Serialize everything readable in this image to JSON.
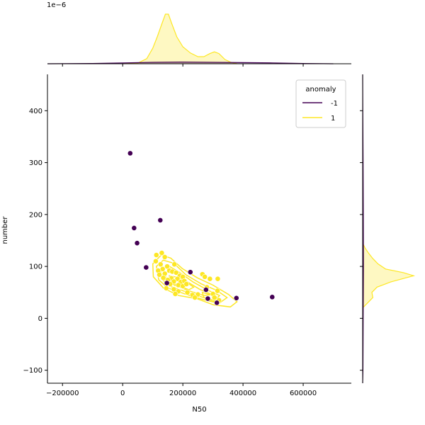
{
  "chart_data": {
    "type": "scatter",
    "title": "",
    "xlabel": "N50",
    "ylabel": "number",
    "xlim": [
      -250000,
      760000
    ],
    "ylim": [
      -125,
      470
    ],
    "x_ticks": [
      -200000,
      0,
      200000,
      400000,
      600000
    ],
    "x_tick_labels": [
      "−200000",
      "0",
      "200000",
      "400000",
      "600000"
    ],
    "y_ticks": [
      -100,
      0,
      100,
      200,
      300,
      400
    ],
    "y_tick_labels": [
      "−100",
      "0",
      "100",
      "200",
      "300",
      "400"
    ],
    "offset_text": "1e−6",
    "grid": false,
    "legend": {
      "title": "anomaly",
      "placement": "top-right"
    },
    "series": [
      {
        "name": "-1",
        "color": "#440154",
        "points": [
          {
            "x": 25000,
            "y": 318
          },
          {
            "x": 38000,
            "y": 174
          },
          {
            "x": 48000,
            "y": 145
          },
          {
            "x": 125000,
            "y": 189
          },
          {
            "x": 78000,
            "y": 98
          },
          {
            "x": 147000,
            "y": 68
          },
          {
            "x": 225000,
            "y": 89
          },
          {
            "x": 277000,
            "y": 55
          },
          {
            "x": 283000,
            "y": 38
          },
          {
            "x": 313000,
            "y": 30
          },
          {
            "x": 378000,
            "y": 39
          },
          {
            "x": 497000,
            "y": 41
          }
        ]
      },
      {
        "name": "1",
        "color": "#fde725",
        "points": [
          {
            "x": 112000,
            "y": 122
          },
          {
            "x": 130000,
            "y": 126
          },
          {
            "x": 140000,
            "y": 118
          },
          {
            "x": 148000,
            "y": 100
          },
          {
            "x": 172000,
            "y": 104
          },
          {
            "x": 110000,
            "y": 110
          },
          {
            "x": 126000,
            "y": 104
          },
          {
            "x": 133000,
            "y": 95
          },
          {
            "x": 118000,
            "y": 92
          },
          {
            "x": 155000,
            "y": 92
          },
          {
            "x": 165000,
            "y": 90
          },
          {
            "x": 178000,
            "y": 88
          },
          {
            "x": 140000,
            "y": 86
          },
          {
            "x": 122000,
            "y": 84
          },
          {
            "x": 190000,
            "y": 82
          },
          {
            "x": 200000,
            "y": 80
          },
          {
            "x": 135000,
            "y": 78
          },
          {
            "x": 162000,
            "y": 77
          },
          {
            "x": 182000,
            "y": 76
          },
          {
            "x": 150000,
            "y": 74
          },
          {
            "x": 170000,
            "y": 71
          },
          {
            "x": 193000,
            "y": 70
          },
          {
            "x": 205000,
            "y": 72
          },
          {
            "x": 158000,
            "y": 66
          },
          {
            "x": 185000,
            "y": 64
          },
          {
            "x": 200000,
            "y": 62
          },
          {
            "x": 212000,
            "y": 66
          },
          {
            "x": 145000,
            "y": 58
          },
          {
            "x": 170000,
            "y": 56
          },
          {
            "x": 185000,
            "y": 52
          },
          {
            "x": 215000,
            "y": 50
          },
          {
            "x": 232000,
            "y": 45
          },
          {
            "x": 175000,
            "y": 47
          },
          {
            "x": 265000,
            "y": 85
          },
          {
            "x": 273000,
            "y": 80
          },
          {
            "x": 290000,
            "y": 76
          },
          {
            "x": 316000,
            "y": 76
          },
          {
            "x": 280000,
            "y": 60
          },
          {
            "x": 300000,
            "y": 47
          },
          {
            "x": 315000,
            "y": 53
          },
          {
            "x": 305000,
            "y": 40
          },
          {
            "x": 320000,
            "y": 35
          },
          {
            "x": 250000,
            "y": 46
          },
          {
            "x": 240000,
            "y": 40
          }
        ]
      }
    ],
    "kde_contours": [
      [
        [
          100000,
          105
        ],
        [
          128000,
          122
        ],
        [
          160000,
          116
        ],
        [
          198000,
          96
        ],
        [
          248000,
          78
        ],
        [
          300000,
          64
        ],
        [
          352000,
          46
        ],
        [
          380000,
          32
        ],
        [
          358000,
          22
        ],
        [
          302000,
          26
        ],
        [
          246000,
          38
        ],
        [
          186000,
          44
        ],
        [
          136000,
          58
        ],
        [
          102000,
          80
        ]
      ],
      [
        [
          112000,
          100
        ],
        [
          135000,
          112
        ],
        [
          170000,
          106
        ],
        [
          210000,
          84
        ],
        [
          262000,
          66
        ],
        [
          312000,
          54
        ],
        [
          347000,
          40
        ],
        [
          320000,
          29
        ],
        [
          268000,
          36
        ],
        [
          212000,
          46
        ],
        [
          152000,
          58
        ],
        [
          120000,
          74
        ]
      ],
      [
        [
          125000,
          94
        ],
        [
          150000,
          102
        ],
        [
          190000,
          88
        ],
        [
          234000,
          70
        ],
        [
          284000,
          54
        ],
        [
          322000,
          44
        ],
        [
          305000,
          34
        ],
        [
          258000,
          42
        ],
        [
          206000,
          52
        ],
        [
          156000,
          62
        ],
        [
          130000,
          76
        ]
      ],
      [
        [
          140000,
          89
        ],
        [
          172000,
          90
        ],
        [
          210000,
          72
        ],
        [
          256000,
          56
        ],
        [
          296000,
          46
        ],
        [
          270000,
          44
        ],
        [
          226000,
          52
        ],
        [
          172000,
          64
        ],
        [
          144000,
          76
        ]
      ],
      [
        [
          155000,
          82
        ],
        [
          190000,
          78
        ],
        [
          236000,
          60
        ],
        [
          220000,
          55
        ],
        [
          180000,
          64
        ],
        [
          158000,
          72
        ]
      ],
      [
        [
          265000,
          50
        ],
        [
          300000,
          44
        ],
        [
          320000,
          38
        ],
        [
          300000,
          32
        ],
        [
          270000,
          40
        ]
      ]
    ],
    "marginal_x": {
      "unit_scale": "1e−6",
      "density_1": [
        [
          0,
          0
        ],
        [
          50000,
          0.02
        ],
        [
          80000,
          0.18
        ],
        [
          100000,
          0.55
        ],
        [
          115000,
          0.95
        ],
        [
          130000,
          1.4
        ],
        [
          142000,
          1.75
        ],
        [
          152000,
          1.75
        ],
        [
          162000,
          1.45
        ],
        [
          180000,
          0.95
        ],
        [
          200000,
          0.6
        ],
        [
          225000,
          0.38
        ],
        [
          250000,
          0.25
        ],
        [
          270000,
          0.25
        ],
        [
          290000,
          0.36
        ],
        [
          305000,
          0.42
        ],
        [
          320000,
          0.36
        ],
        [
          340000,
          0.15
        ],
        [
          360000,
          0.05
        ],
        [
          380000,
          0
        ]
      ],
      "density_neg1": [
        [
          -250000,
          0
        ],
        [
          -100000,
          0.01
        ],
        [
          0,
          0.03
        ],
        [
          100000,
          0.05
        ],
        [
          200000,
          0.06
        ],
        [
          300000,
          0.05
        ],
        [
          400000,
          0.04
        ],
        [
          500000,
          0.03
        ],
        [
          600000,
          0.01
        ],
        [
          700000,
          0
        ]
      ]
    },
    "marginal_y": {
      "density_1": [
        [
          20,
          0
        ],
        [
          30,
          0.1
        ],
        [
          40,
          0.2
        ],
        [
          50,
          0.18
        ],
        [
          60,
          0.28
        ],
        [
          70,
          0.55
        ],
        [
          78,
          0.85
        ],
        [
          82,
          1
        ],
        [
          88,
          0.8
        ],
        [
          95,
          0.45
        ],
        [
          105,
          0.3
        ],
        [
          115,
          0.2
        ],
        [
          125,
          0.12
        ],
        [
          135,
          0.05
        ],
        [
          145,
          0
        ]
      ],
      "density_neg1": [
        [
          -125,
          0
        ],
        [
          -100,
          0.005
        ],
        [
          0,
          0.01
        ],
        [
          100,
          0.015
        ],
        [
          200,
          0.012
        ],
        [
          300,
          0.008
        ],
        [
          400,
          0.003
        ],
        [
          470,
          0
        ]
      ]
    }
  }
}
